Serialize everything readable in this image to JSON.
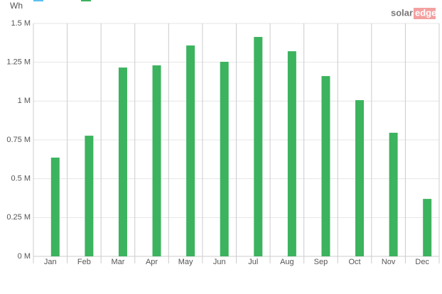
{
  "chart_data": {
    "type": "bar",
    "ylabel": "Wh",
    "logo": {
      "left": "solar",
      "right": "edge"
    },
    "categories": [
      "Jan",
      "Feb",
      "Mar",
      "Apr",
      "May",
      "Jun",
      "Jul",
      "Aug",
      "Sep",
      "Oct",
      "Nov",
      "Dec"
    ],
    "values": [
      0.636,
      0.777,
      1.216,
      1.23,
      1.358,
      1.253,
      1.413,
      1.321,
      1.161,
      1.006,
      0.796,
      0.37
    ],
    "color": "#3cb35e",
    "ylim": [
      0,
      1.5
    ],
    "yticks": [
      {
        "value": 0,
        "label": "0 M"
      },
      {
        "value": 0.25,
        "label": "0.25 M"
      },
      {
        "value": 0.5,
        "label": "0.5 M"
      },
      {
        "value": 0.75,
        "label": "0.75 M"
      },
      {
        "value": 1,
        "label": "1 M"
      },
      {
        "value": 1.25,
        "label": "1.25 M"
      },
      {
        "value": 1.5,
        "label": "1.5 M"
      }
    ],
    "grid": true
  }
}
